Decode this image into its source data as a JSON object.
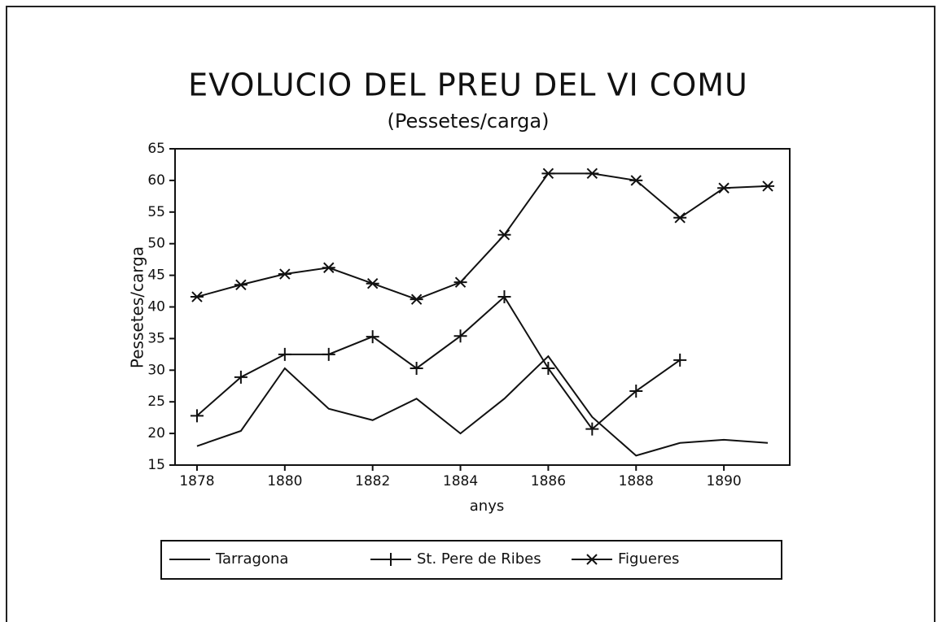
{
  "chart_data": {
    "type": "line",
    "title": "EVOLUCIO DEL PREU DEL VI COMU",
    "subtitle": "(Pessetes/carga)",
    "x_label": "anys",
    "y_label": "Pessetes/carga",
    "x": [
      1878,
      1879,
      1880,
      1881,
      1882,
      1883,
      1884,
      1885,
      1886,
      1887,
      1888,
      1889,
      1890,
      1891
    ],
    "series": [
      {
        "name": "Tarragona",
        "color": "#111111",
        "marker": "none",
        "values": [
          18,
          20.4,
          30.3,
          23.9,
          22.1,
          25.5,
          20,
          25.5,
          32.2,
          22.6,
          16.5,
          18.5,
          19,
          18.5
        ]
      },
      {
        "name": "St. Pere de Ribes",
        "color": "#111111",
        "marker": "plus",
        "values": [
          22.8,
          28.9,
          32.5,
          32.5,
          35.3,
          30.3,
          35.4,
          41.6,
          30.3,
          20.7,
          26.7,
          31.6,
          null,
          null
        ]
      },
      {
        "name": "Figueres",
        "color": "#111111",
        "marker": "asterisk",
        "values": [
          41.6,
          43.5,
          45.2,
          46.2,
          43.7,
          41.2,
          43.9,
          51.4,
          61.1,
          61.1,
          60,
          54.1,
          58.8,
          59.1
        ]
      }
    ],
    "xlim": [
      1877.5,
      1891.5
    ],
    "xticks": [
      1878,
      1880,
      1882,
      1884,
      1886,
      1888,
      1890
    ],
    "ylim": [
      15,
      65
    ],
    "yticks": [
      15,
      20,
      25,
      30,
      35,
      40,
      45,
      50,
      55,
      60,
      65
    ],
    "legend": "bottom"
  }
}
